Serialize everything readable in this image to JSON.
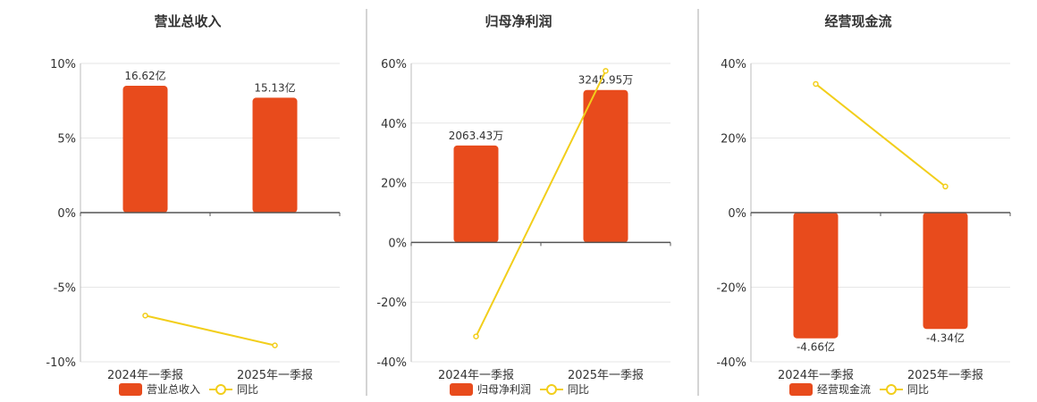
{
  "colors": {
    "bar": "#E84B1C",
    "line": "#F2CE1B",
    "grid": "#E6E6E6",
    "axis": "#555555",
    "divider": "#AAAAAA"
  },
  "legend": {
    "line_label": "同比"
  },
  "chart_data": [
    {
      "type": "bar",
      "title": "营业总收入",
      "categories": [
        "2024年一季报",
        "2025年一季报"
      ],
      "yticks": [
        "10%",
        "5%",
        "0%",
        "-5%",
        "-10%"
      ],
      "ylim": [
        -10,
        10
      ],
      "series": [
        {
          "name": "营业总收入",
          "type": "bar",
          "values": [
            8.5,
            7.7
          ],
          "labels": [
            "16.62亿",
            "15.13亿"
          ]
        },
        {
          "name": "同比",
          "type": "line",
          "values": [
            -6.9,
            -8.9
          ]
        }
      ]
    },
    {
      "type": "bar",
      "title": "归母净利润",
      "categories": [
        "2024年一季报",
        "2025年一季报"
      ],
      "yticks": [
        "60%",
        "40%",
        "20%",
        "0%",
        "-20%",
        "-40%"
      ],
      "ylim": [
        -40,
        60
      ],
      "series": [
        {
          "name": "归母净利润",
          "type": "bar",
          "values": [
            32.5,
            51.1
          ],
          "labels": [
            "2063.43万",
            "3245.95万"
          ]
        },
        {
          "name": "同比",
          "type": "line",
          "values": [
            -31.5,
            57.5
          ]
        }
      ]
    },
    {
      "type": "bar",
      "title": "经营现金流",
      "categories": [
        "2024年一季报",
        "2025年一季报"
      ],
      "yticks": [
        "40%",
        "20%",
        "0%",
        "-20%",
        "-40%"
      ],
      "ylim": [
        -40,
        40
      ],
      "series": [
        {
          "name": "经营现金流",
          "type": "bar",
          "values": [
            -33.7,
            -31.2
          ],
          "labels": [
            "-4.66亿",
            "-4.34亿"
          ]
        },
        {
          "name": "同比",
          "type": "line",
          "values": [
            34.5,
            7.0
          ]
        }
      ]
    }
  ]
}
